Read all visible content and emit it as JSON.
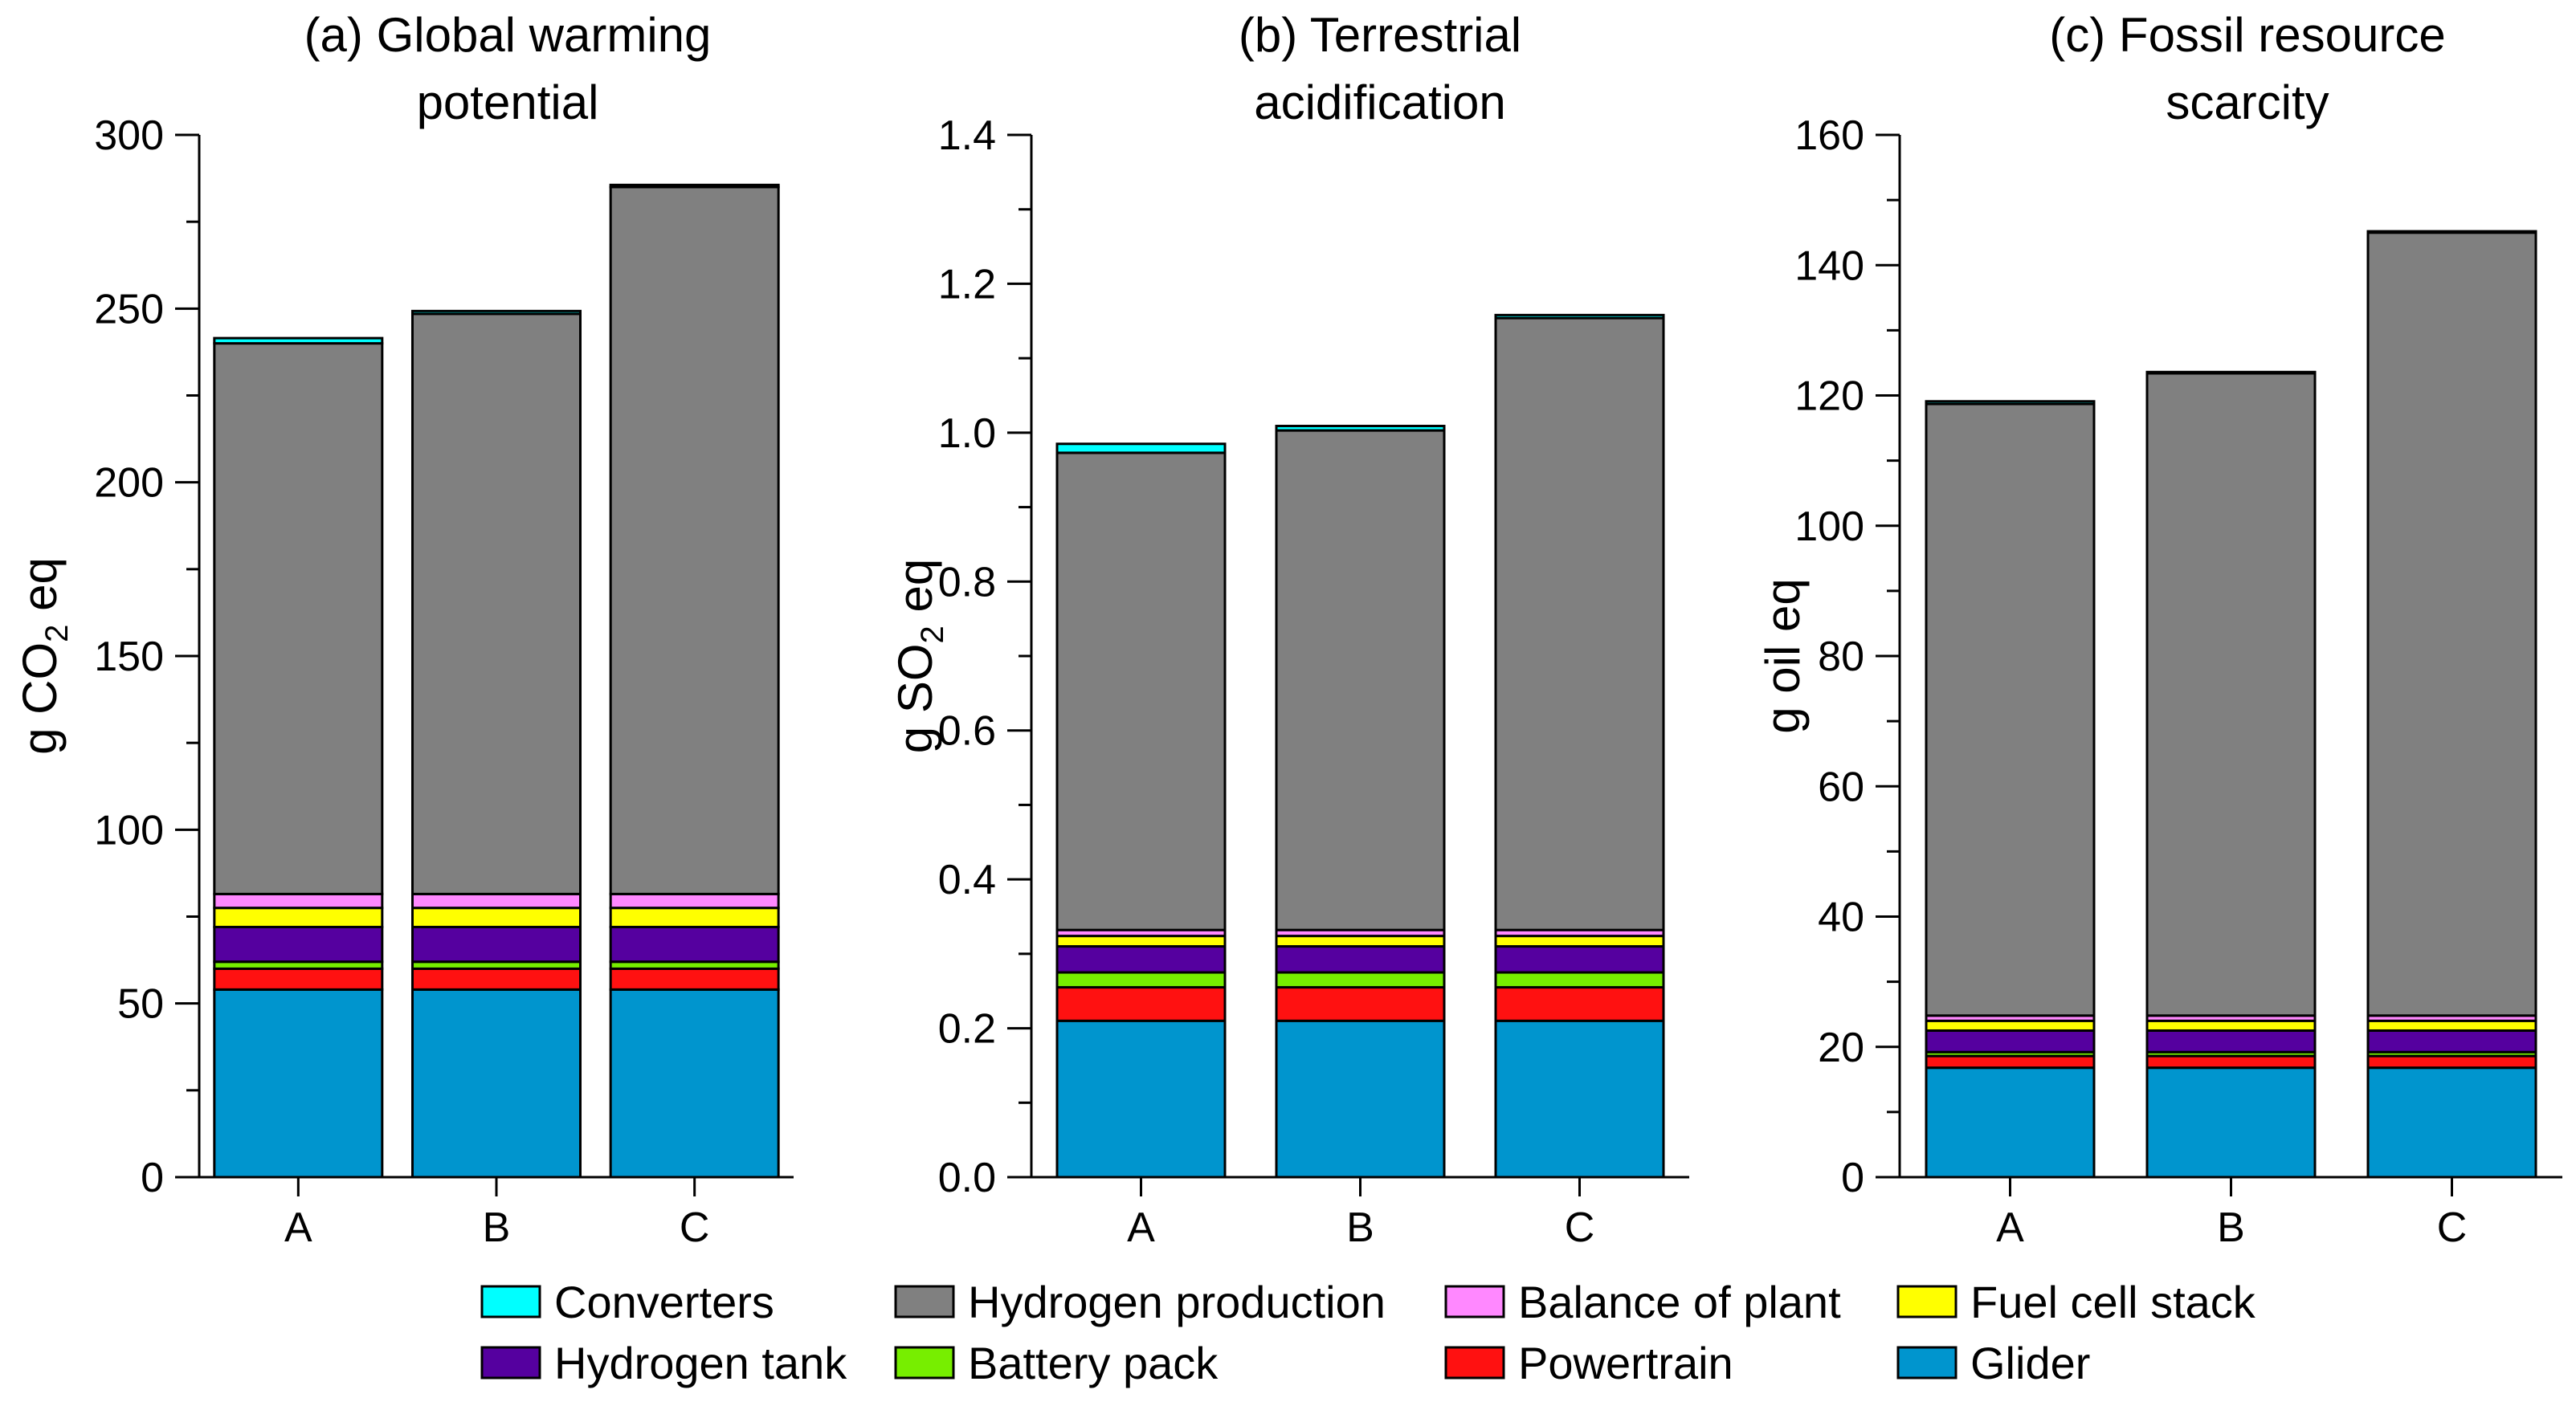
{
  "figure": {
    "legend": [
      {
        "key": "converters",
        "label": "Converters",
        "color": "#00FFFF"
      },
      {
        "key": "hydrogen_production",
        "label": "Hydrogen production",
        "color": "#808080"
      },
      {
        "key": "balance_of_plant",
        "label": "Balance of plant",
        "color": "#FF88FF"
      },
      {
        "key": "fuel_cell_stack",
        "label": "Fuel cell stack",
        "color": "#FFFF00"
      },
      {
        "key": "hydrogen_tank",
        "label": "Hydrogen tank",
        "color": "#55009F"
      },
      {
        "key": "battery_pack",
        "label": "Battery pack",
        "color": "#77EE00"
      },
      {
        "key": "powertrain",
        "label": "Powertrain",
        "color": "#FF1111"
      },
      {
        "key": "glider",
        "label": "Glider",
        "color": "#0095CE"
      }
    ]
  },
  "chart_data": [
    {
      "type": "bar",
      "stacked": true,
      "title": "(a) Global warming potential",
      "title_lines": [
        "(a) Global warming",
        "potential"
      ],
      "ylabel": "g CO2 eq",
      "ylabel_parts": {
        "pre": "g CO",
        "sub": "2",
        "post": " eq"
      },
      "ylim": [
        0,
        300
      ],
      "yticks": [
        0,
        50,
        100,
        150,
        200,
        250,
        300
      ],
      "ytick_labels": [
        "0",
        "50",
        "100",
        "150",
        "200",
        "250",
        "300"
      ],
      "categories": [
        "A",
        "B",
        "C"
      ],
      "series": [
        {
          "name": "Glider",
          "values": [
            54,
            54,
            54
          ]
        },
        {
          "name": "Powertrain",
          "values": [
            6,
            6,
            6
          ]
        },
        {
          "name": "Battery pack",
          "values": [
            2,
            2,
            2
          ]
        },
        {
          "name": "Hydrogen tank",
          "values": [
            10,
            10,
            10
          ]
        },
        {
          "name": "Fuel cell stack",
          "values": [
            5.5,
            5.5,
            5.5
          ]
        },
        {
          "name": "Balance of plant",
          "values": [
            4,
            4,
            4
          ]
        },
        {
          "name": "Hydrogen production",
          "values": [
            158.5,
            167,
            203.5
          ]
        },
        {
          "name": "Converters",
          "values": [
            1.5,
            0.8,
            0.6
          ]
        }
      ]
    },
    {
      "type": "bar",
      "stacked": true,
      "title": "(b) Terrestrial acidification",
      "title_lines": [
        "(b) Terrestrial",
        "acidification"
      ],
      "ylabel": "g SO2 eq",
      "ylabel_parts": {
        "pre": "g SO",
        "sub": "2",
        "post": " eq"
      },
      "ylim": [
        0,
        1.4
      ],
      "yticks": [
        0,
        0.2,
        0.4,
        0.6,
        0.8,
        1.0,
        1.2,
        1.4
      ],
      "ytick_labels": [
        "0.0",
        "0.2",
        "0.4",
        "0.6",
        "0.8",
        "1.0",
        "1.2",
        "1.4"
      ],
      "categories": [
        "A",
        "B",
        "C"
      ],
      "series": [
        {
          "name": "Glider",
          "values": [
            0.21,
            0.21,
            0.21
          ]
        },
        {
          "name": "Powertrain",
          "values": [
            0.045,
            0.045,
            0.045
          ]
        },
        {
          "name": "Battery pack",
          "values": [
            0.02,
            0.02,
            0.02
          ]
        },
        {
          "name": "Hydrogen tank",
          "values": [
            0.035,
            0.035,
            0.035
          ]
        },
        {
          "name": "Fuel cell stack",
          "values": [
            0.014,
            0.014,
            0.014
          ]
        },
        {
          "name": "Balance of plant",
          "values": [
            0.008,
            0.008,
            0.008
          ]
        },
        {
          "name": "Hydrogen production",
          "values": [
            0.641,
            0.671,
            0.822
          ]
        },
        {
          "name": "Converters",
          "values": [
            0.012,
            0.006,
            0.004
          ]
        }
      ]
    },
    {
      "type": "bar",
      "stacked": true,
      "title": "(c) Fossil resource scarcity",
      "title_lines": [
        "(c) Fossil resource",
        "scarcity"
      ],
      "ylabel": "g oil eq",
      "ylabel_parts": {
        "pre": "g oil eq",
        "sub": "",
        "post": ""
      },
      "ylim": [
        0,
        160
      ],
      "yticks": [
        0,
        20,
        40,
        60,
        80,
        100,
        120,
        140,
        160
      ],
      "ytick_labels": [
        "0",
        "20",
        "40",
        "60",
        "80",
        "100",
        "120",
        "140",
        "160"
      ],
      "categories": [
        "A",
        "B",
        "C"
      ],
      "series": [
        {
          "name": "Glider",
          "values": [
            16.8,
            16.8,
            16.8
          ]
        },
        {
          "name": "Powertrain",
          "values": [
            1.8,
            1.8,
            1.8
          ]
        },
        {
          "name": "Battery pack",
          "values": [
            0.6,
            0.6,
            0.6
          ]
        },
        {
          "name": "Hydrogen tank",
          "values": [
            3.3,
            3.3,
            3.3
          ]
        },
        {
          "name": "Fuel cell stack",
          "values": [
            1.5,
            1.5,
            1.5
          ]
        },
        {
          "name": "Balance of plant",
          "values": [
            0.8,
            0.8,
            0.8
          ]
        },
        {
          "name": "Hydrogen production",
          "values": [
            93.9,
            98.6,
            120.2
          ]
        },
        {
          "name": "Converters",
          "values": [
            0.4,
            0.2,
            0.2
          ]
        }
      ]
    }
  ]
}
